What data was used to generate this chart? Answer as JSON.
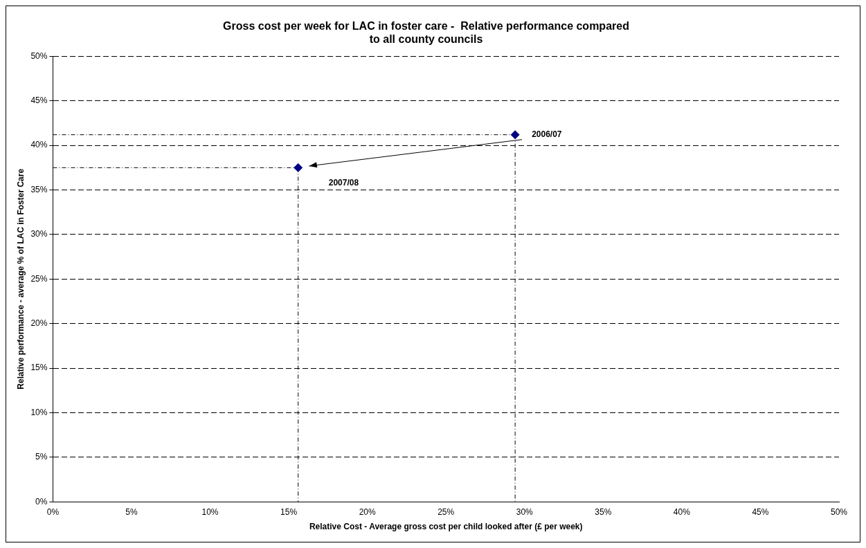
{
  "chart_data": {
    "type": "scatter",
    "title": "Gross cost per week for LAC in foster care -  Relative performance compared to all county councils",
    "xlabel": "Relative Cost - Average gross cost per child looked after (£ per week)",
    "ylabel": "Relative performance - average % of LAC in Foster Care",
    "series": [
      {
        "color": "#000080",
        "x": [
          29.4,
          15.6
        ],
        "values": [
          41.2,
          37.5
        ]
      },
      {
        "type": "line",
        "color": "#000000",
        "x": [
          0,
          29.4
        ],
        "values": [
          41.2,
          41.2
        ],
        "marker": "none",
        "line_style": "dotted"
      },
      {
        "type": "line",
        "color": "#000000",
        "x": [
          29.4,
          29.4
        ],
        "values": [
          41.2,
          0
        ],
        "marker": "none",
        "line_style": "dotted"
      },
      {
        "type": "line",
        "color": "#000000",
        "x": [
          0,
          15.6
        ],
        "values": [
          37.5,
          37.5
        ],
        "marker": "none",
        "line_style": "dotted"
      },
      {
        "type": "line",
        "color": "#000000",
        "x": [
          15.6,
          15.6
        ],
        "values": [
          37.5,
          0
        ],
        "marker": "none",
        "line_style": "dotted"
      }
    ],
    "marker": "diamond",
    "grid": "y",
    "legend": false,
    "xlim": [
      0,
      50
    ],
    "ylim": [
      0,
      50
    ],
    "xticks": [
      {
        "value": 0,
        "label": "0%"
      },
      {
        "value": 5,
        "label": "5%"
      },
      {
        "value": 10,
        "label": "10%"
      },
      {
        "value": 15,
        "label": "15%"
      },
      {
        "value": 20,
        "label": "20%"
      },
      {
        "value": 25,
        "label": "25%"
      },
      {
        "value": 30,
        "label": "30%"
      },
      {
        "value": 35,
        "label": "35%"
      },
      {
        "value": 40,
        "label": "40%"
      },
      {
        "value": 45,
        "label": "45%"
      },
      {
        "value": 50,
        "label": "50%"
      }
    ],
    "yticks": [
      {
        "value": 0,
        "label": "0%"
      },
      {
        "value": 5,
        "label": "5%"
      },
      {
        "value": 10,
        "label": "10%"
      },
      {
        "value": 15,
        "label": "15%"
      },
      {
        "value": 20,
        "label": "20%"
      },
      {
        "value": 25,
        "label": "25%"
      },
      {
        "value": 30,
        "label": "30%"
      },
      {
        "value": 35,
        "label": "35%"
      },
      {
        "value": 40,
        "label": "40%"
      },
      {
        "value": 45,
        "label": "45%"
      },
      {
        "value": 50,
        "label": "50%"
      }
    ],
    "annotations": [
      "2006/07",
      "2007/08"
    ]
  }
}
